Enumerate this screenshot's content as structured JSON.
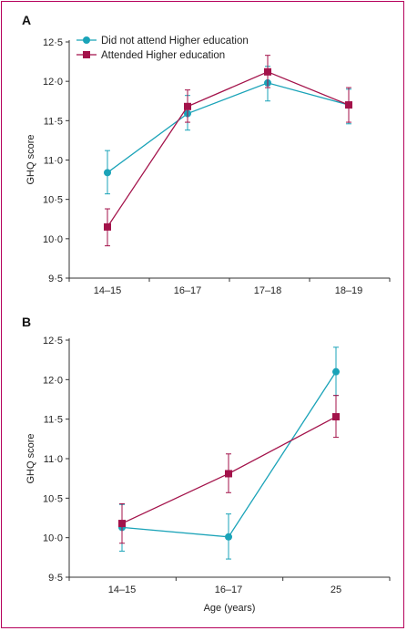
{
  "colors": {
    "frame": "#b5005b",
    "series_a": "#1aa3b8",
    "series_b": "#a3124a",
    "axis": "#333333"
  },
  "chart_data": [
    {
      "type": "line",
      "panel_label": "A",
      "ylabel": "GHQ score",
      "xlabel": "",
      "ylim": [
        9.5,
        12.5
      ],
      "yticks": [
        "9·5",
        "10·0",
        "10·5",
        "11·0",
        "11·5",
        "12·0",
        "12·5"
      ],
      "ytick_values": [
        9.5,
        10.0,
        10.5,
        11.0,
        11.5,
        12.0,
        12.5
      ],
      "categories": [
        "14–15",
        "16–17",
        "17–18",
        "18–19"
      ],
      "legend": "top-left",
      "series": [
        {
          "name": "Did not attend Higher education",
          "marker": "circle",
          "color": "#1aa3b8",
          "values": [
            10.84,
            11.59,
            11.98,
            11.7
          ],
          "lower": [
            10.57,
            11.38,
            11.75,
            11.46
          ],
          "upper": [
            11.12,
            11.82,
            12.19,
            11.9
          ]
        },
        {
          "name": "Attended Higher education",
          "marker": "square",
          "color": "#a3124a",
          "values": [
            10.15,
            11.68,
            12.12,
            11.7
          ],
          "lower": [
            9.91,
            11.48,
            11.92,
            11.48
          ],
          "upper": [
            10.38,
            11.89,
            12.33,
            11.92
          ]
        }
      ]
    },
    {
      "type": "line",
      "panel_label": "B",
      "ylabel": "GHQ score",
      "xlabel": "Age (years)",
      "ylim": [
        9.5,
        12.5
      ],
      "yticks": [
        "9·5",
        "10·0",
        "10·5",
        "11·0",
        "11·5",
        "12·0",
        "12·5"
      ],
      "ytick_values": [
        9.5,
        10.0,
        10.5,
        11.0,
        11.5,
        12.0,
        12.5
      ],
      "categories": [
        "14–15",
        "16–17",
        "25"
      ],
      "series": [
        {
          "name": "Did not attend Higher education",
          "marker": "circle",
          "color": "#1aa3b8",
          "values": [
            10.13,
            10.01,
            12.1
          ],
          "lower": [
            9.83,
            9.73,
            11.8
          ],
          "upper": [
            10.42,
            10.3,
            12.41
          ]
        },
        {
          "name": "Attended Higher education",
          "marker": "square",
          "color": "#a3124a",
          "values": [
            10.18,
            10.81,
            11.53
          ],
          "lower": [
            9.93,
            10.57,
            11.27
          ],
          "upper": [
            10.43,
            11.06,
            11.8
          ]
        }
      ]
    }
  ]
}
